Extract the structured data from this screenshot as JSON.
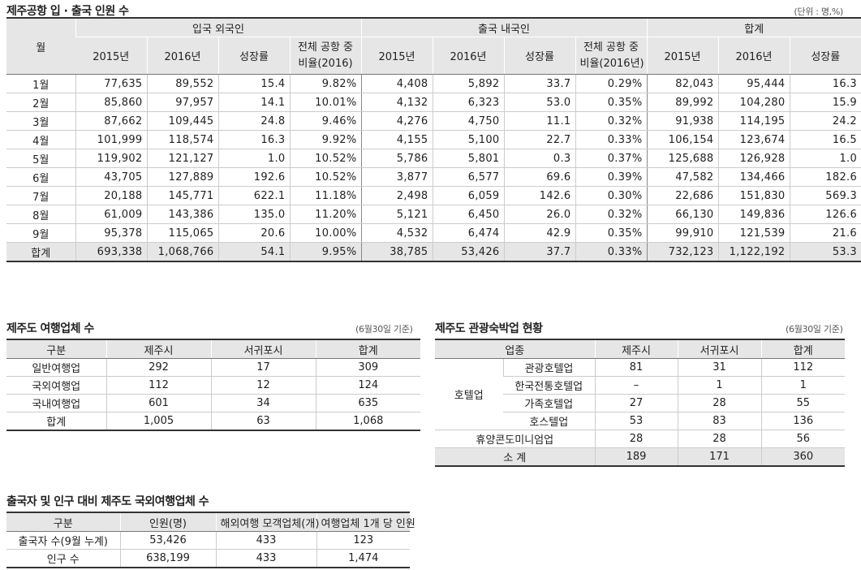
{
  "t1": {
    "title": "제주공항 입 · 출국 인원 수",
    "unit": "(단위 : 명,%)",
    "group_month": "월",
    "groups": [
      "입국 외국인",
      "출국 내국인",
      "합계"
    ],
    "sub_in": [
      "2015년",
      "2016년",
      "성장률",
      "전체 공항 중",
      "비율(2016)"
    ],
    "sub_out": [
      "2015년",
      "2016년",
      "성장률",
      "전체 공항 중",
      "비율(2016년)"
    ],
    "sub_total": [
      "2015년",
      "2016년",
      "성장률"
    ],
    "rows": [
      [
        "1월",
        "77,635",
        "89,552",
        "15.4",
        "9.82%",
        "4,408",
        "5,892",
        "33.7",
        "0.29%",
        "82,043",
        "95,444",
        "16.3"
      ],
      [
        "2월",
        "85,860",
        "97,957",
        "14.1",
        "10.01%",
        "4,132",
        "6,323",
        "53.0",
        "0.35%",
        "89,992",
        "104,280",
        "15.9"
      ],
      [
        "3월",
        "87,662",
        "109,445",
        "24.8",
        "9.46%",
        "4,276",
        "4,750",
        "11.1",
        "0.32%",
        "91,938",
        "114,195",
        "24.2"
      ],
      [
        "4월",
        "101,999",
        "118,574",
        "16.3",
        "9.92%",
        "4,155",
        "5,100",
        "22.7",
        "0.33%",
        "106,154",
        "123,674",
        "16.5"
      ],
      [
        "5월",
        "119,902",
        "121,127",
        "1.0",
        "10.52%",
        "5,786",
        "5,801",
        "0.3",
        "0.37%",
        "125,688",
        "126,928",
        "1.0"
      ],
      [
        "6월",
        "43,705",
        "127,889",
        "192.6",
        "10.52%",
        "3,877",
        "6,577",
        "69.6",
        "0.39%",
        "47,582",
        "134,466",
        "182.6"
      ],
      [
        "7월",
        "20,188",
        "145,771",
        "622.1",
        "11.18%",
        "2,498",
        "6,059",
        "142.6",
        "0.30%",
        "22,686",
        "151,830",
        "569.3"
      ],
      [
        "8월",
        "61,009",
        "143,386",
        "135.0",
        "11.20%",
        "5,121",
        "6,450",
        "26.0",
        "0.32%",
        "66,130",
        "149,836",
        "126.6"
      ],
      [
        "9월",
        "95,378",
        "115,065",
        "20.6",
        "10.00%",
        "4,532",
        "6,474",
        "42.9",
        "0.35%",
        "99,910",
        "121,539",
        "21.6"
      ]
    ],
    "total": [
      "합계",
      "693,338",
      "1,068,766",
      "54.1",
      "9.95%",
      "38,785",
      "53,426",
      "37.7",
      "0.33%",
      "732,123",
      "1,122,192",
      "53.3"
    ]
  },
  "t2": {
    "title": "제주도 여행업체 수",
    "note": "(6월30일 기준)",
    "headers": [
      "구분",
      "제주시",
      "서귀포시",
      "합계"
    ],
    "rows": [
      [
        "일반여행업",
        "292",
        "17",
        "309"
      ],
      [
        "국외여행업",
        "112",
        "12",
        "124"
      ],
      [
        "국내여행업",
        "601",
        "34",
        "635"
      ],
      [
        "합계",
        "1,005",
        "63",
        "1,068"
      ]
    ]
  },
  "t3": {
    "title": "제주도 관광숙박업 현황",
    "note": "(6월30일 기준)",
    "headers": [
      "업종",
      "제주시",
      "서귀포시",
      "합계"
    ],
    "hotel_group": "호텔업",
    "hotel_rows": [
      [
        "관광호텔업",
        "81",
        "31",
        "112"
      ],
      [
        "한국전통호텔업",
        "–",
        "1",
        "1"
      ],
      [
        "가족호텔업",
        "27",
        "28",
        "55"
      ],
      [
        "호스텔업",
        "53",
        "83",
        "136"
      ]
    ],
    "condo": [
      "휴양콘도미니엄업",
      "28",
      "28",
      "56"
    ],
    "subtotal": [
      "소 계",
      "189",
      "171",
      "360"
    ]
  },
  "t4": {
    "title": "출국자 및 인구 대비 제주도 국외여행업체 수",
    "headers": [
      "구분",
      "인원(명)",
      "해외여행 모객업체(개)",
      "여행업체 1개 당 인원"
    ],
    "rows": [
      [
        "출국자 수(9월 누계)",
        "53,426",
        "433",
        "123"
      ],
      [
        "인구 수",
        "638,199",
        "433",
        "1,474"
      ]
    ]
  }
}
